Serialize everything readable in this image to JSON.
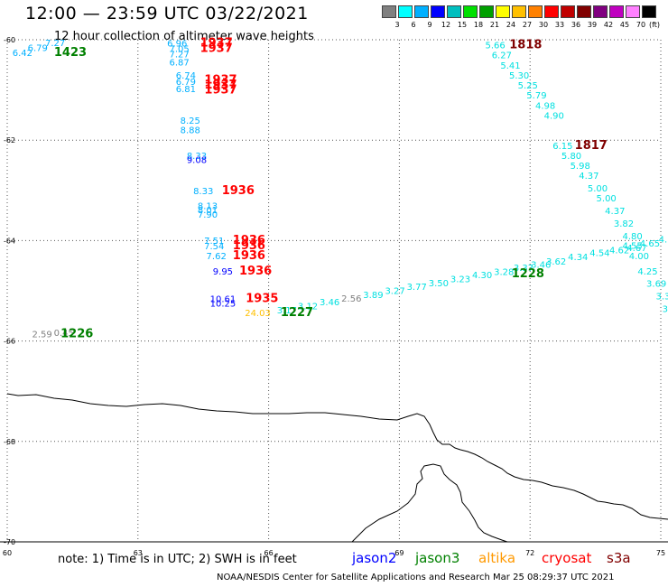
{
  "header": {
    "title": "12:00 — 23:59 UTC 03/22/2021",
    "subtitle": "12 hour collection of altimeter wave heights"
  },
  "colorbar": {
    "colors": [
      "#808080",
      "#00ffff",
      "#00b0ff",
      "#0000ff",
      "#00bfbf",
      "#00e000",
      "#00a000",
      "#ffff00",
      "#ffc000",
      "#ff8000",
      "#ff0000",
      "#c00000",
      "#800000",
      "#800080",
      "#c000c0",
      "#ff80ff",
      "#000000"
    ],
    "ticks": [
      "3",
      "6",
      "9",
      "12",
      "15",
      "18",
      "21",
      "24",
      "27",
      "30",
      "33",
      "36",
      "39",
      "42",
      "45",
      "70"
    ],
    "unit": "(ft)"
  },
  "map": {
    "lon_ticks": [
      "60",
      "63",
      "66",
      "69",
      "72",
      "75"
    ],
    "lat_ticks": [
      "-60",
      "-62",
      "-64",
      "-66",
      "-68",
      "-70"
    ]
  },
  "annotations": [
    {
      "text": "7.27",
      "color": "#00b0ff",
      "lon": 61.1,
      "lat": -60.05
    },
    {
      "text": "6.79",
      "color": "#00b0ff",
      "lon": 60.7,
      "lat": -60.15
    },
    {
      "text": "6.42",
      "color": "#00b0ff",
      "lon": 60.35,
      "lat": -60.25
    },
    {
      "text": "1423",
      "color": "#008000",
      "lon": 61.45,
      "lat": -60.25,
      "bold": true
    },
    {
      "text": "6.96",
      "color": "#00b0ff",
      "lon": 63.9,
      "lat": -60.06
    },
    {
      "text": "7.05",
      "color": "#00b0ff",
      "lon": 63.95,
      "lat": -60.17
    },
    {
      "text": "7.27",
      "color": "#00b0ff",
      "lon": 63.95,
      "lat": -60.28
    },
    {
      "text": "6.87",
      "color": "#00b0ff",
      "lon": 63.95,
      "lat": -60.44
    },
    {
      "text": "1937",
      "color": "#ff0000",
      "lon": 64.8,
      "lat": -60.06,
      "bold": true
    },
    {
      "text": "1937",
      "color": "#ff0000",
      "lon": 64.8,
      "lat": -60.17,
      "bold": true
    },
    {
      "text": "6.74",
      "color": "#00b0ff",
      "lon": 64.1,
      "lat": -60.7
    },
    {
      "text": "6.79",
      "color": "#00b0ff",
      "lon": 64.1,
      "lat": -60.83
    },
    {
      "text": "6.81",
      "color": "#00b0ff",
      "lon": 64.1,
      "lat": -60.97
    },
    {
      "text": "1937",
      "color": "#ff0000",
      "lon": 64.9,
      "lat": -60.8,
      "bold": true
    },
    {
      "text": "1937",
      "color": "#ff0000",
      "lon": 64.9,
      "lat": -60.9,
      "bold": true
    },
    {
      "text": "1937",
      "color": "#ff0000",
      "lon": 64.9,
      "lat": -61.0,
      "bold": true
    },
    {
      "text": "8.25",
      "color": "#00b0ff",
      "lon": 64.2,
      "lat": -61.6
    },
    {
      "text": "8.88",
      "color": "#00b0ff",
      "lon": 64.2,
      "lat": -61.79
    },
    {
      "text": "8.33",
      "color": "#00b0ff",
      "lon": 64.35,
      "lat": -62.3
    },
    {
      "text": "9.08",
      "color": "#0000ff",
      "lon": 64.35,
      "lat": -62.38
    },
    {
      "text": "8.33",
      "color": "#00b0ff",
      "lon": 64.5,
      "lat": -63.0
    },
    {
      "text": "1936",
      "color": "#ff0000",
      "lon": 65.3,
      "lat": -63.0,
      "bold": true
    },
    {
      "text": "8.13",
      "color": "#00b0ff",
      "lon": 64.6,
      "lat": -63.3
    },
    {
      "text": "8.01",
      "color": "#00b0ff",
      "lon": 64.6,
      "lat": -63.38
    },
    {
      "text": "7.90",
      "color": "#00b0ff",
      "lon": 64.6,
      "lat": -63.47
    },
    {
      "text": "7.51",
      "color": "#00b0ff",
      "lon": 64.75,
      "lat": -63.99
    },
    {
      "text": "7.54",
      "color": "#00b0ff",
      "lon": 64.75,
      "lat": -64.1
    },
    {
      "text": "7.62",
      "color": "#00b0ff",
      "lon": 64.8,
      "lat": -64.3
    },
    {
      "text": "1936",
      "color": "#ff0000",
      "lon": 65.55,
      "lat": -63.99,
      "bold": true
    },
    {
      "text": "1936",
      "color": "#ff0000",
      "lon": 65.55,
      "lat": -64.1,
      "bold": true
    },
    {
      "text": "1936",
      "color": "#ff0000",
      "lon": 65.55,
      "lat": -64.3,
      "bold": true
    },
    {
      "text": "9.95",
      "color": "#0000ff",
      "lon": 64.95,
      "lat": -64.6
    },
    {
      "text": "1936",
      "color": "#ff0000",
      "lon": 65.7,
      "lat": -64.6,
      "bold": true
    },
    {
      "text": "10.61",
      "color": "#0000ff",
      "lon": 64.95,
      "lat": -65.15
    },
    {
      "text": "10.25",
      "color": "#0000ff",
      "lon": 64.95,
      "lat": -65.24
    },
    {
      "text": "1935",
      "color": "#ff0000",
      "lon": 65.85,
      "lat": -65.15,
      "bold": true
    },
    {
      "text": "24.03",
      "color": "#ffc000",
      "lon": 65.75,
      "lat": -65.43
    },
    {
      "text": "3.17",
      "color": "#00e0e0",
      "lon": 66.42,
      "lat": -65.38
    },
    {
      "text": "3.12",
      "color": "#00e0e0",
      "lon": 66.9,
      "lat": -65.3
    },
    {
      "text": "1227",
      "color": "#008000",
      "lon": 66.65,
      "lat": -65.43,
      "bold": true
    },
    {
      "text": "3.46",
      "color": "#00e0e0",
      "lon": 67.4,
      "lat": -65.22
    },
    {
      "text": "2.56",
      "color": "#808080",
      "lon": 67.9,
      "lat": -65.14
    },
    {
      "text": "3.89",
      "color": "#00e0e0",
      "lon": 68.4,
      "lat": -65.07
    },
    {
      "text": "3.27",
      "color": "#00e0e0",
      "lon": 68.9,
      "lat": -64.99
    },
    {
      "text": "3.77",
      "color": "#00e0e0",
      "lon": 69.4,
      "lat": -64.91
    },
    {
      "text": "3.50",
      "color": "#00e0e0",
      "lon": 69.9,
      "lat": -64.84
    },
    {
      "text": "3.23",
      "color": "#00e0e0",
      "lon": 70.4,
      "lat": -64.76
    },
    {
      "text": "4.30",
      "color": "#00e0e0",
      "lon": 70.9,
      "lat": -64.68
    },
    {
      "text": "3.28",
      "color": "#00e0e0",
      "lon": 71.4,
      "lat": -64.61
    },
    {
      "text": "3.37",
      "color": "#00e0e0",
      "lon": 71.85,
      "lat": -64.53
    },
    {
      "text": "3.46",
      "color": "#00e0e0",
      "lon": 72.25,
      "lat": -64.47
    },
    {
      "text": "1228",
      "color": "#008000",
      "lon": 71.95,
      "lat": -64.66,
      "bold": true
    },
    {
      "text": "3.62",
      "color": "#00e0e0",
      "lon": 72.6,
      "lat": -64.41
    },
    {
      "text": "4.34",
      "color": "#00e0e0",
      "lon": 73.1,
      "lat": -64.32
    },
    {
      "text": "4.54",
      "color": "#00e0e0",
      "lon": 73.6,
      "lat": -64.24
    },
    {
      "text": "4.62",
      "color": "#00e0e0",
      "lon": 74.05,
      "lat": -64.18
    },
    {
      "text": "4.55",
      "color": "#00e0e0",
      "lon": 74.35,
      "lat": -64.09
    },
    {
      "text": "4.67",
      "color": "#00e0e0",
      "lon": 74.45,
      "lat": -64.14
    },
    {
      "text": "4.65",
      "color": "#00e0e0",
      "lon": 74.75,
      "lat": -64.05
    },
    {
      "text": "4.",
      "color": "#00e0e0",
      "lon": 75.05,
      "lat": -63.97
    },
    {
      "text": "2.59",
      "color": "#808080",
      "lon": 60.8,
      "lat": -65.85
    },
    {
      "text": "0.45",
      "color": "#808080",
      "lon": 61.3,
      "lat": -65.83
    },
    {
      "text": "1226",
      "color": "#008000",
      "lon": 61.6,
      "lat": -65.85,
      "bold": true
    },
    {
      "text": "5.66",
      "color": "#00e0e0",
      "lon": 71.2,
      "lat": -60.1
    },
    {
      "text": "1818",
      "color": "#800000",
      "lon": 71.9,
      "lat": -60.1,
      "bold": true
    },
    {
      "text": "6.27",
      "color": "#00e0e0",
      "lon": 71.35,
      "lat": -60.3
    },
    {
      "text": "5.41",
      "color": "#00e0e0",
      "lon": 71.55,
      "lat": -60.5
    },
    {
      "text": "5.30",
      "color": "#00e0e0",
      "lon": 71.75,
      "lat": -60.7
    },
    {
      "text": "5.25",
      "color": "#00e0e0",
      "lon": 71.95,
      "lat": -60.9
    },
    {
      "text": "5.79",
      "color": "#00e0e0",
      "lon": 72.15,
      "lat": -61.1
    },
    {
      "text": "4.98",
      "color": "#00e0e0",
      "lon": 72.35,
      "lat": -61.3
    },
    {
      "text": "4.90",
      "color": "#00e0e0",
      "lon": 72.55,
      "lat": -61.5
    },
    {
      "text": "6.15",
      "color": "#00e0e0",
      "lon": 72.75,
      "lat": -62.1
    },
    {
      "text": "1817",
      "color": "#800000",
      "lon": 73.4,
      "lat": -62.1,
      "bold": true
    },
    {
      "text": "5.80",
      "color": "#00e0e0",
      "lon": 72.95,
      "lat": -62.3
    },
    {
      "text": "5.98",
      "color": "#00e0e0",
      "lon": 73.15,
      "lat": -62.5
    },
    {
      "text": "4.37",
      "color": "#00e0e0",
      "lon": 73.35,
      "lat": -62.7
    },
    {
      "text": "5.00",
      "color": "#00e0e0",
      "lon": 73.55,
      "lat": -62.95
    },
    {
      "text": "5.00",
      "color": "#00e0e0",
      "lon": 73.75,
      "lat": -63.15
    },
    {
      "text": "4.37",
      "color": "#00e0e0",
      "lon": 73.95,
      "lat": -63.4
    },
    {
      "text": "3.82",
      "color": "#00e0e0",
      "lon": 74.15,
      "lat": -63.65
    },
    {
      "text": "4.80",
      "color": "#00e0e0",
      "lon": 74.35,
      "lat": -63.9
    },
    {
      "text": "4.00",
      "color": "#00e0e0",
      "lon": 74.5,
      "lat": -64.3
    },
    {
      "text": "4.25",
      "color": "#00e0e0",
      "lon": 74.7,
      "lat": -64.6
    },
    {
      "text": "3.69",
      "color": "#00e0e0",
      "lon": 74.9,
      "lat": -64.85
    },
    {
      "text": "3.3",
      "color": "#00e0e0",
      "lon": 75.05,
      "lat": -65.1
    },
    {
      "text": "3",
      "color": "#00e0e0",
      "lon": 75.1,
      "lat": -65.35
    }
  ],
  "footer": {
    "note": "note: 1) Time is in UTC; 2) SWH is in feet",
    "satellites": [
      {
        "name": "jason2",
        "color": "#0000ff"
      },
      {
        "name": "jason3",
        "color": "#008000"
      },
      {
        "name": "altika",
        "color": "#ff9900"
      },
      {
        "name": "cryosat",
        "color": "#ff0000"
      },
      {
        "name": "s3a",
        "color": "#800000"
      }
    ],
    "credit": "NOAA/NESDIS Center for Satellite Applications and Research    Mar 25 08:29:37 UTC 2021"
  }
}
